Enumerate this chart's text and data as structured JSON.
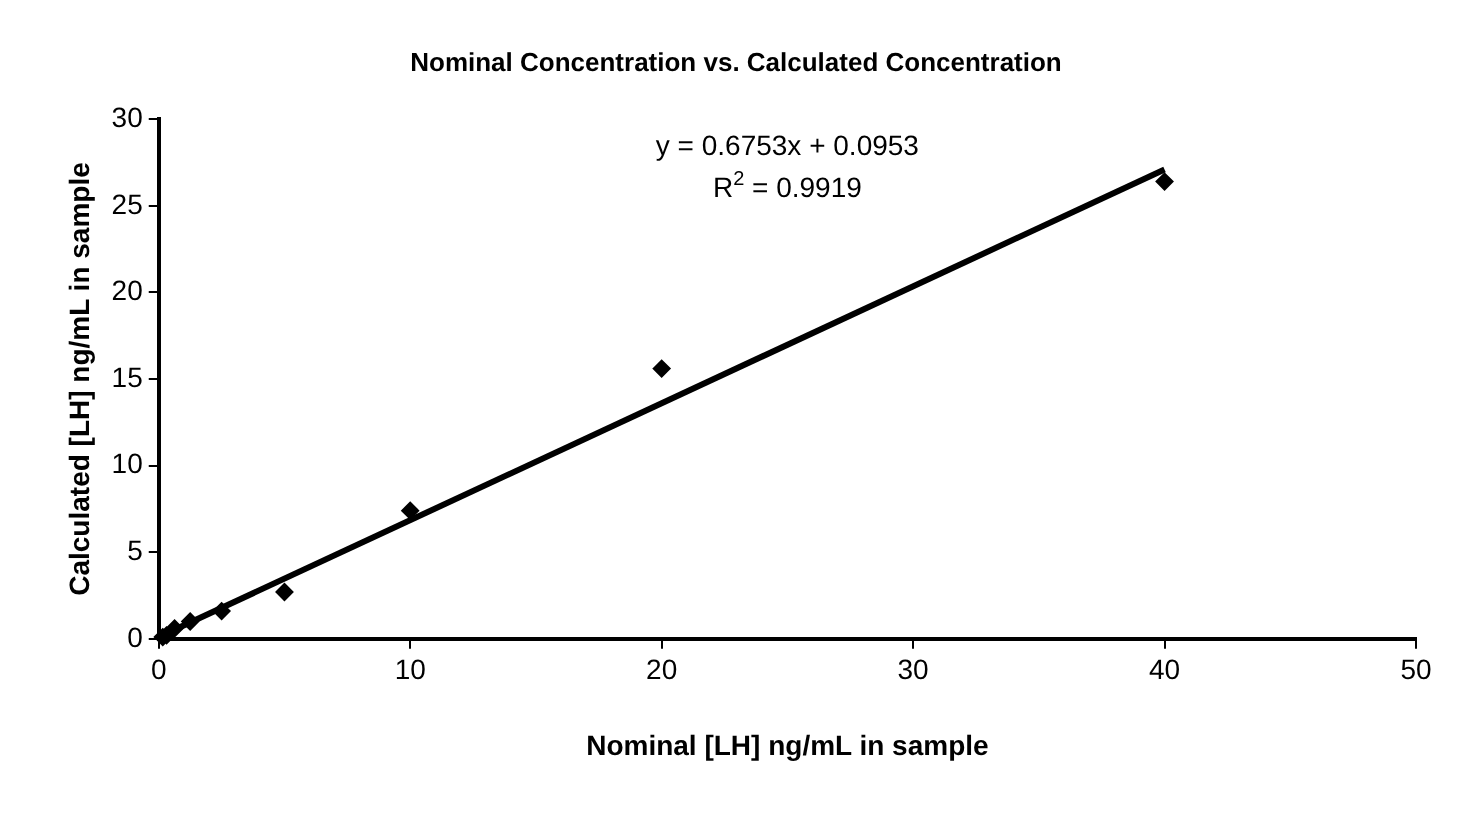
{
  "chart_data": {
    "type": "scatter",
    "title": "Nominal Concentration vs. Calculated Concentration",
    "xlabel": "Nominal [LH] ng/mL in sample",
    "ylabel": "Calculated [LH] ng/mL in sample",
    "annotations": [
      "y = 0.6753x + 0.0953",
      "R$^{2}$ = 0.9919"
    ],
    "series": [
      {
        "color": "#000000",
        "marker": "diamond",
        "x": [
          0.16,
          0.31,
          0.63,
          1.25,
          2.5,
          5,
          10,
          20,
          40
        ],
        "values": [
          0.1,
          0.2,
          0.6,
          1.0,
          1.6,
          2.7,
          7.4,
          15.6,
          26.4
        ]
      },
      {
        "type": "line",
        "color": "#000000",
        "marker": "none",
        "x": [
          0,
          40
        ],
        "values": [
          0.1,
          27.1
        ]
      }
    ],
    "xlim": [
      0,
      50
    ],
    "xticks": [
      0,
      10,
      20,
      30,
      40,
      50
    ],
    "ylim": [
      0,
      30
    ],
    "yticks": [
      0,
      5,
      10,
      15,
      20,
      25,
      30
    ],
    "grid": false,
    "legend": false
  }
}
